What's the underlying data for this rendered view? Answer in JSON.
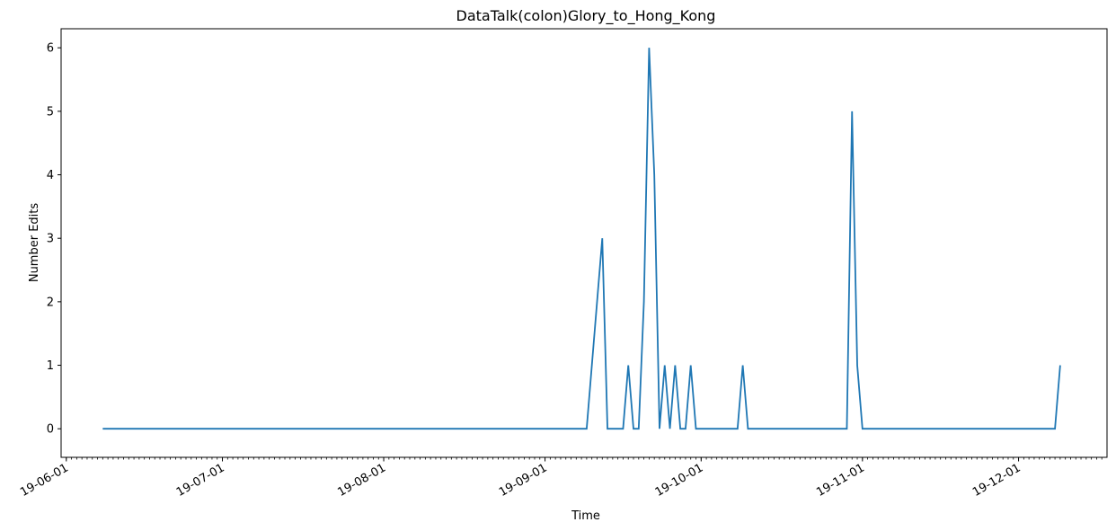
{
  "chart_data": {
    "type": "line",
    "title": "DataTalk(colon)Glory_to_Hong_Kong",
    "xlabel": "Time",
    "ylabel": "Number Edits",
    "ylim": [
      -0.45,
      6.3
    ],
    "xlim": [
      "2019-05-31",
      "2019-12-18"
    ],
    "x_tick_labels": [
      "19-06-01",
      "19-07-01",
      "19-08-01",
      "19-09-01",
      "19-10-01",
      "19-11-01",
      "19-12-01"
    ],
    "x_tick_dates": [
      "2019-06-01",
      "2019-07-01",
      "2019-08-01",
      "2019-09-01",
      "2019-10-01",
      "2019-11-01",
      "2019-12-01"
    ],
    "y_ticks": [
      0,
      1,
      2,
      3,
      4,
      5,
      6
    ],
    "grid": false,
    "series": [
      {
        "color": "#1f77b4",
        "points": [
          [
            "2019-06-08",
            0
          ],
          [
            "2019-09-09",
            0
          ],
          [
            "2019-09-12",
            3
          ],
          [
            "2019-09-13",
            0
          ],
          [
            "2019-09-16",
            0
          ],
          [
            "2019-09-17",
            1
          ],
          [
            "2019-09-18",
            0
          ],
          [
            "2019-09-19",
            0
          ],
          [
            "2019-09-20",
            2
          ],
          [
            "2019-09-21",
            6
          ],
          [
            "2019-09-22",
            4
          ],
          [
            "2019-09-23",
            0
          ],
          [
            "2019-09-24",
            1
          ],
          [
            "2019-09-25",
            0
          ],
          [
            "2019-09-26",
            1
          ],
          [
            "2019-09-27",
            0
          ],
          [
            "2019-09-28",
            0
          ],
          [
            "2019-09-29",
            1
          ],
          [
            "2019-09-30",
            0
          ],
          [
            "2019-10-08",
            0
          ],
          [
            "2019-10-09",
            1
          ],
          [
            "2019-10-10",
            0
          ],
          [
            "2019-10-29",
            0
          ],
          [
            "2019-10-30",
            5
          ],
          [
            "2019-10-31",
            1
          ],
          [
            "2019-11-01",
            0
          ],
          [
            "2019-12-08",
            0
          ],
          [
            "2019-12-09",
            1
          ]
        ]
      }
    ]
  }
}
